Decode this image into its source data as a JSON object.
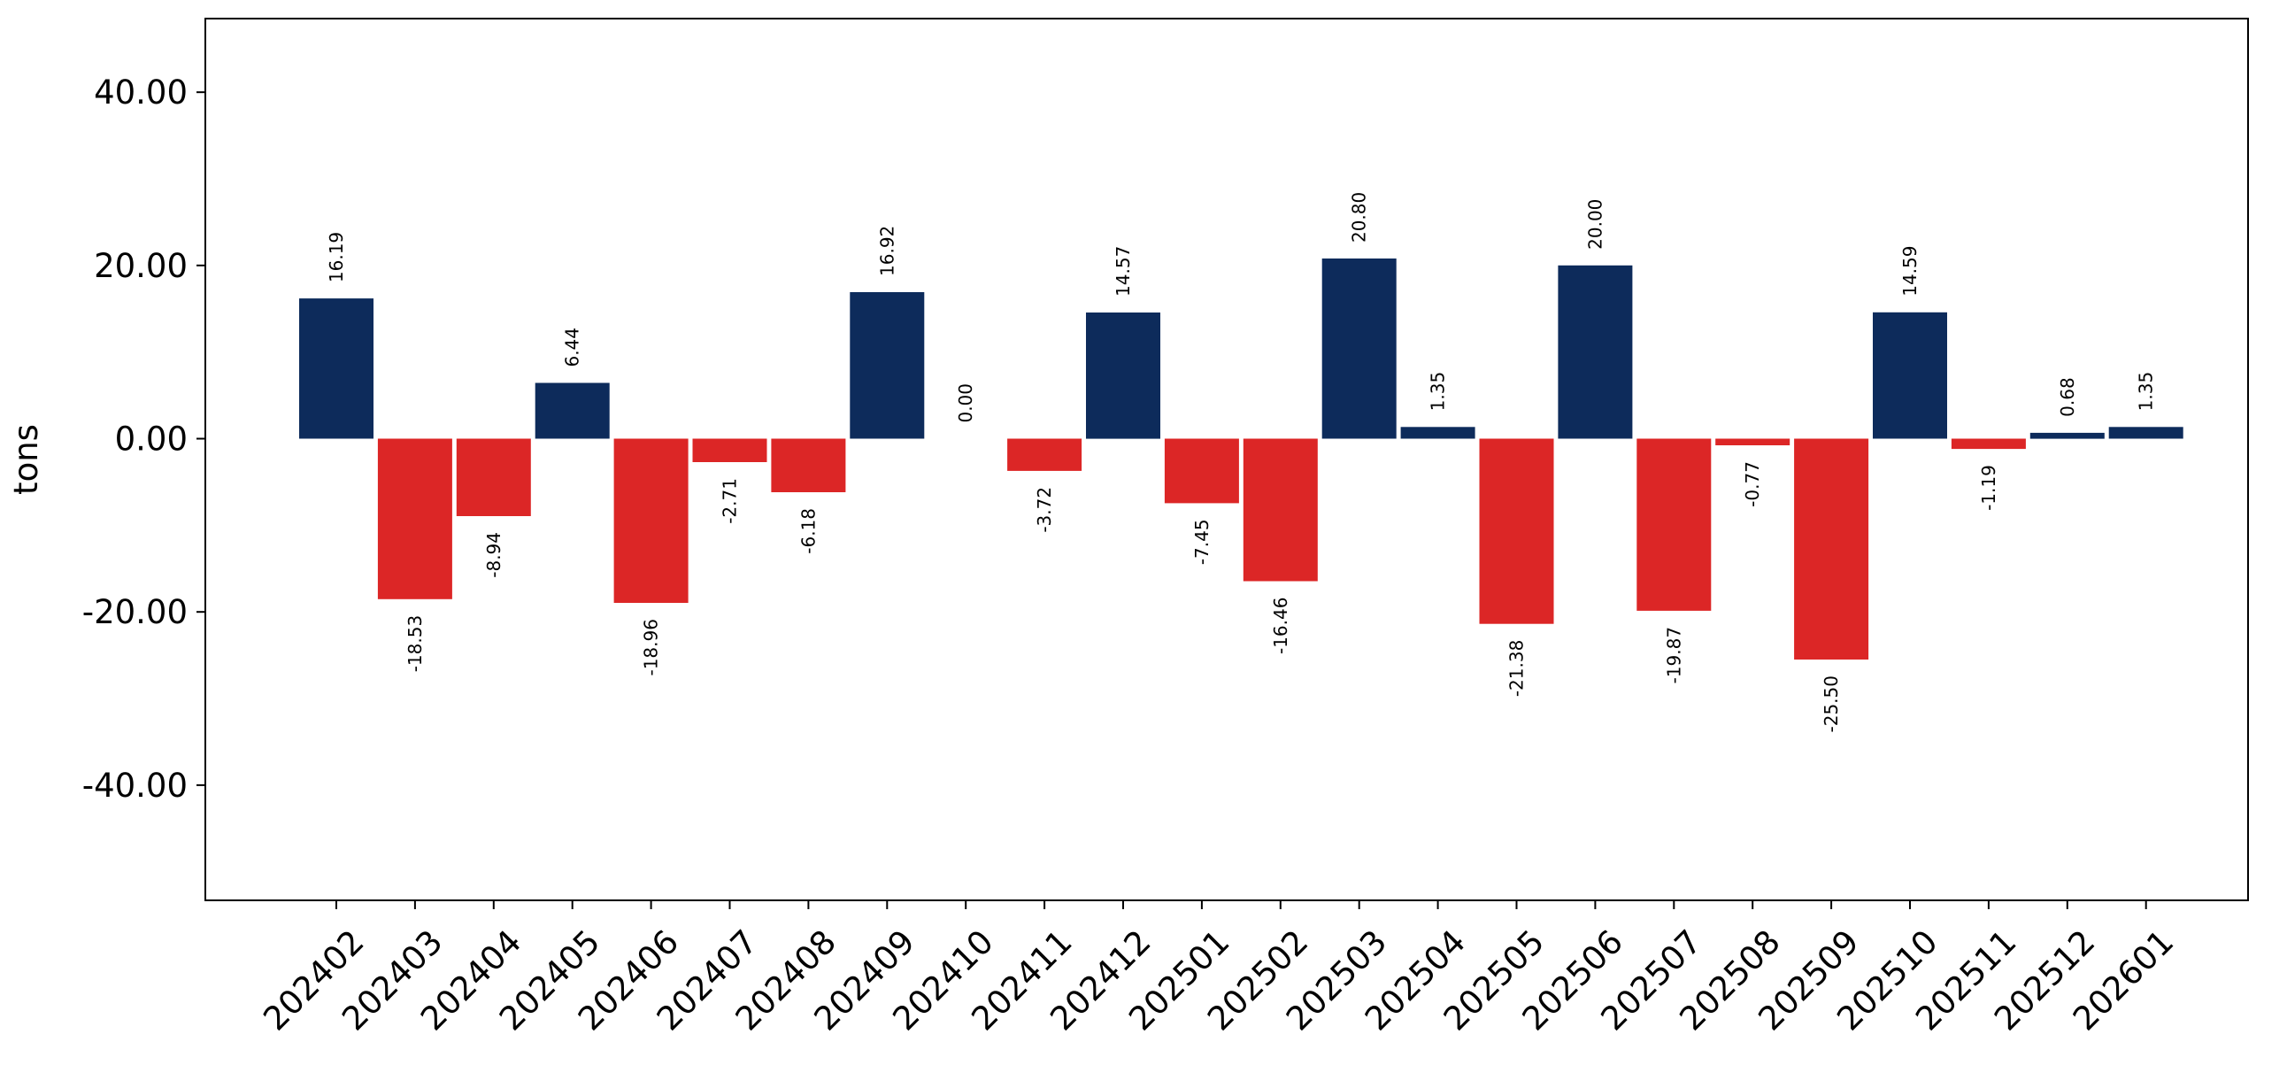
{
  "chart_data": {
    "type": "bar",
    "title": "",
    "xlabel": "",
    "ylabel": "tons",
    "ylim": [
      -53.3,
      48.5
    ],
    "yticks": [
      -40,
      -20,
      0,
      20,
      40
    ],
    "ytick_labels": [
      "-40.00",
      "-20.00",
      "0.00",
      "20.00",
      "40.00"
    ],
    "grid": false,
    "legend": "none",
    "colors": {
      "positive": "#0d2b5b",
      "negative": "#dc2626",
      "axis": "#000000"
    },
    "categories": [
      "202402",
      "202403",
      "202404",
      "202405",
      "202406",
      "202407",
      "202408",
      "202409",
      "202410",
      "202411",
      "202412",
      "202501",
      "202502",
      "202503",
      "202504",
      "202505",
      "202506",
      "202507",
      "202508",
      "202509",
      "202510",
      "202511",
      "202512",
      "202601"
    ],
    "values": [
      16.19,
      -18.53,
      -8.94,
      6.44,
      -18.96,
      -2.71,
      -6.18,
      16.92,
      0.0,
      -3.72,
      14.57,
      -7.45,
      -16.46,
      20.8,
      1.35,
      -21.38,
      20.0,
      -19.87,
      -0.77,
      -25.5,
      14.59,
      -1.19,
      0.68,
      1.35
    ],
    "value_labels": [
      "16.19",
      "-18.53",
      "-8.94",
      "6.44",
      "-18.96",
      "-2.71",
      "-6.18",
      "16.92",
      "0.00",
      "-3.72",
      "14.57",
      "-7.45",
      "-16.46",
      "20.80",
      "1.35",
      "-21.38",
      "20.00",
      "-19.87",
      "-0.77",
      "-25.50",
      "14.59",
      "-1.19",
      "0.68",
      "1.35"
    ]
  }
}
